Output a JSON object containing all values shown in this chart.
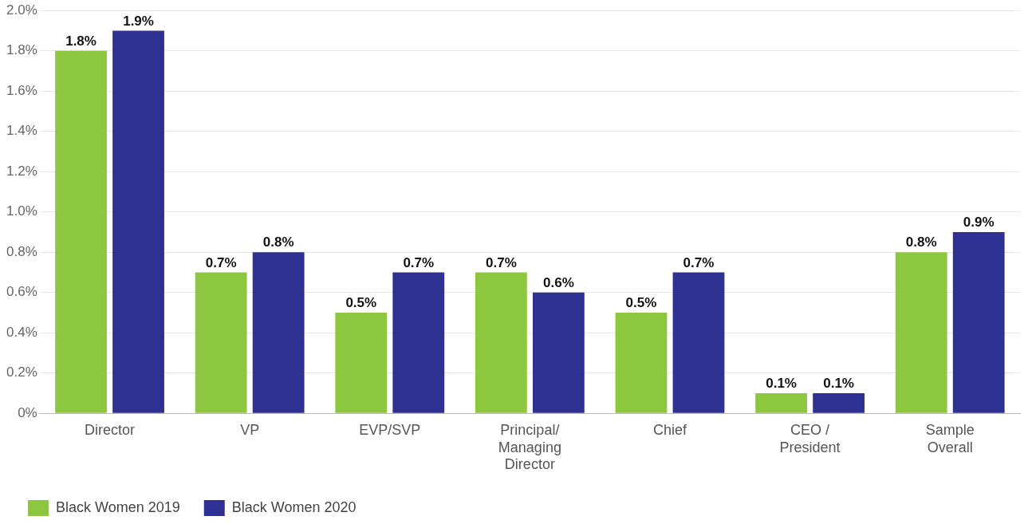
{
  "chart_data": {
    "type": "bar",
    "categories": [
      "Director",
      "VP",
      "EVP/SVP",
      "Principal/\nManaging\nDirector",
      "Chief",
      "CEO /\nPresident",
      "Sample\nOverall"
    ],
    "series": [
      {
        "name": "Black Women 2019",
        "color": "#8dc63f",
        "values": [
          1.8,
          0.7,
          0.5,
          0.7,
          0.5,
          0.1,
          0.8
        ],
        "value_labels": [
          "1.8%",
          "0.7%",
          "0.5%",
          "0.7%",
          "0.5%",
          "0.1%",
          "0.8%"
        ]
      },
      {
        "name": "Black Women 2020",
        "color": "#2e3192",
        "values": [
          1.9,
          0.8,
          0.7,
          0.6,
          0.7,
          0.1,
          0.9
        ],
        "value_labels": [
          "1.9%",
          "0.8%",
          "0.7%",
          "0.6%",
          "0.7%",
          "0.1%",
          "0.9%"
        ]
      }
    ],
    "ylim": [
      0,
      2.0
    ],
    "yticks": [
      {
        "value": 0,
        "label": "0%"
      },
      {
        "value": 0.2,
        "label": "0.2%"
      },
      {
        "value": 0.4,
        "label": "0.4%"
      },
      {
        "value": 0.6,
        "label": "0.6%"
      },
      {
        "value": 0.8,
        "label": "0.8%"
      },
      {
        "value": 1.0,
        "label": "1.0%"
      },
      {
        "value": 1.2,
        "label": "1.2%"
      },
      {
        "value": 1.4,
        "label": "1.4%"
      },
      {
        "value": 1.6,
        "label": "1.6%"
      },
      {
        "value": 1.8,
        "label": "1.8%"
      },
      {
        "value": 2.0,
        "label": "2.0%"
      }
    ],
    "grid": "y",
    "legend": "bottom left"
  }
}
